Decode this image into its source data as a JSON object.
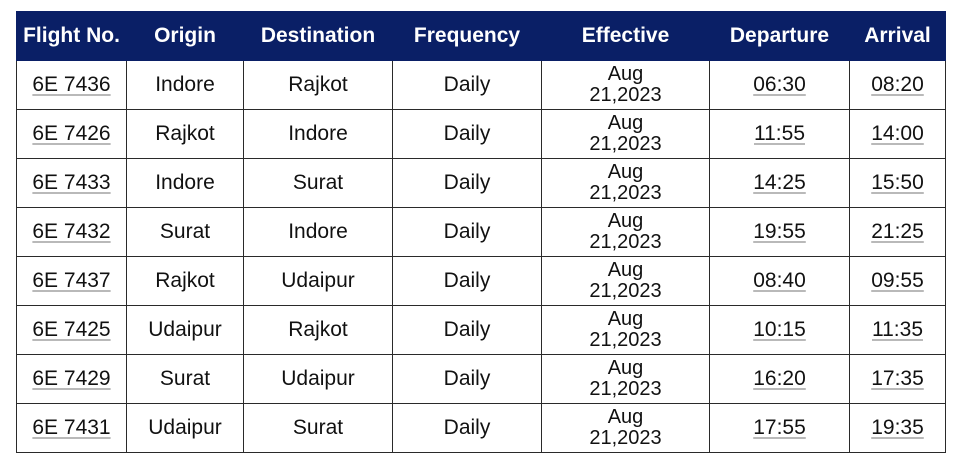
{
  "table": {
    "headers": [
      "Flight No.",
      "Origin",
      "Destination",
      "Frequency",
      "Effective",
      "Departure",
      "Arrival"
    ],
    "rows": [
      {
        "flight": "6E 7436",
        "origin": "Indore",
        "destination": "Rajkot",
        "frequency": "Daily",
        "effective_month": "Aug",
        "effective_rest": "21,2023",
        "departure": "06:30",
        "arrival": "08:20"
      },
      {
        "flight": "6E 7426",
        "origin": "Rajkot",
        "destination": "Indore",
        "frequency": "Daily",
        "effective_month": "Aug",
        "effective_rest": "21,2023",
        "departure": "11:55",
        "arrival": "14:00"
      },
      {
        "flight": "6E 7433",
        "origin": "Indore",
        "destination": "Surat",
        "frequency": "Daily",
        "effective_month": "Aug",
        "effective_rest": "21,2023",
        "departure": "14:25",
        "arrival": "15:50"
      },
      {
        "flight": "6E 7432",
        "origin": "Surat",
        "destination": "Indore",
        "frequency": "Daily",
        "effective_month": "Aug",
        "effective_rest": "21,2023",
        "departure": "19:55",
        "arrival": "21:25"
      },
      {
        "flight": "6E 7437",
        "origin": "Rajkot",
        "destination": "Udaipur",
        "frequency": "Daily",
        "effective_month": "Aug",
        "effective_rest": "21,2023",
        "departure": "08:40",
        "arrival": "09:55"
      },
      {
        "flight": "6E 7425",
        "origin": "Udaipur",
        "destination": "Rajkot",
        "frequency": "Daily",
        "effective_month": "Aug",
        "effective_rest": "21,2023",
        "departure": "10:15",
        "arrival": "11:35"
      },
      {
        "flight": "6E 7429",
        "origin": "Surat",
        "destination": "Udaipur",
        "frequency": "Daily",
        "effective_month": "Aug",
        "effective_rest": "21,2023",
        "departure": "16:20",
        "arrival": "17:35"
      },
      {
        "flight": "6E 7431",
        "origin": "Udaipur",
        "destination": "Surat",
        "frequency": "Daily",
        "effective_month": "Aug",
        "effective_rest": "21,2023",
        "departure": "17:55",
        "arrival": "19:35"
      }
    ]
  },
  "colors": {
    "header_background": "#0a1f66",
    "header_text": "#ffffff",
    "cell_text": "#111111",
    "border": "#2a2a2a"
  }
}
